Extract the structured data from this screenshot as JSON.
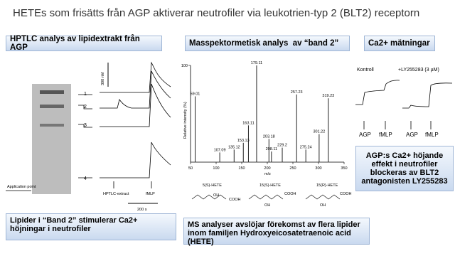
{
  "title": "HETEs som frisätts från AGP aktiverar neutrofiler via leukotrien-typ 2 (BLT2) receptorn",
  "hptlc": {
    "heading": "HPTLC analys av lipidextrakt från AGP",
    "caption": "Lipider i “Band 2” stimulerar Ca2+ höjningar i neutrofiler",
    "band_labels": [
      "1",
      "2",
      "3",
      "4"
    ],
    "scale_label": "300 nM",
    "stimuli": [
      "HPTLC-extract",
      "fMLP"
    ],
    "time_label": "200 s",
    "application_point": "Application point"
  },
  "ms": {
    "heading": "Masspektormetisk analys  av “band 2”",
    "caption": "MS analyser avslöjar förekomst av flera lipider inom familjen Hydroxyeicosatetraenoic acid (HETE)",
    "structures": [
      {
        "name": "5(S)-HETE",
        "groups": [
          "OH",
          "COOH"
        ]
      },
      {
        "name": "15(S)-HETE",
        "groups": [
          "COOH",
          "OH"
        ]
      },
      {
        "name": "15(R)-HETE",
        "groups": [
          "COOH",
          "OH"
        ]
      }
    ]
  },
  "chart_data": {
    "type": "bar",
    "x_label": "m/z",
    "y_label": "Relative intensity (%)",
    "color": "#222",
    "x": [
      59.01,
      107.09,
      135.12,
      153.13,
      163.11,
      179.11,
      203.18,
      208.11,
      229.2,
      257.23,
      275.24,
      301.22,
      319.23
    ],
    "values": [
      68,
      10,
      13,
      20,
      38,
      100,
      24,
      11,
      15,
      70,
      13,
      29,
      66
    ],
    "xlim": [
      50,
      350
    ],
    "xticks": [
      50,
      100,
      150,
      200,
      250,
      300,
      350
    ],
    "ylim": [
      0,
      100
    ],
    "yticks": [
      100
    ]
  },
  "calcium": {
    "heading": "Ca2+ mätningar",
    "caption": "AGP:s Ca2+ höjande effekt i neutrofiler blockeras av BLT2 antagonisten LY255283",
    "conditions": [
      "Kontroll",
      "+LY255283 (3 µM)"
    ],
    "stimuli": [
      "AGP",
      "fMLP",
      "AGP",
      "fMLP"
    ]
  }
}
